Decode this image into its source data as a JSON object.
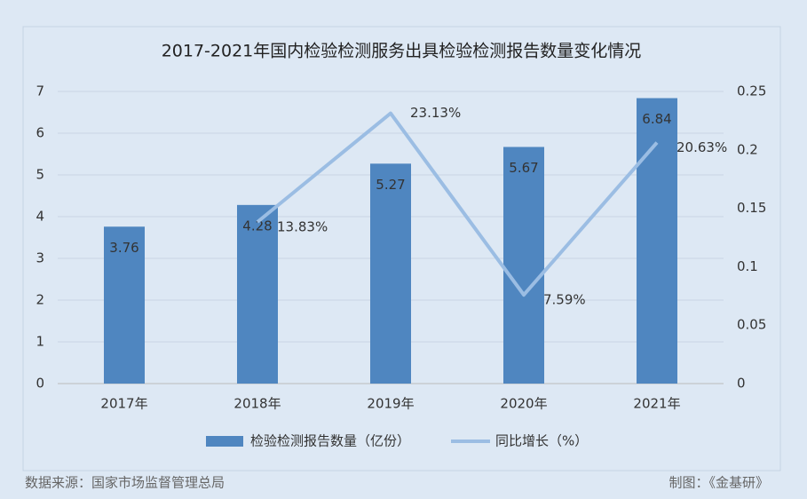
{
  "chart_data": {
    "type": "bar",
    "title": "2017-2021年国内检验检测服务出具检验检测报告数量变化情况",
    "categories": [
      "2017年",
      "2018年",
      "2019年",
      "2020年",
      "2021年"
    ],
    "series": [
      {
        "name": "检验检测报告数量（亿份）",
        "type": "bar",
        "color": "#4f86c0",
        "values": [
          3.76,
          4.28,
          5.27,
          5.67,
          6.84
        ]
      },
      {
        "name": "同比增长（%）",
        "type": "line",
        "axis": "y2",
        "color": "#9bbde3",
        "values": [
          null,
          0.1383,
          0.2313,
          0.0759,
          0.2063
        ],
        "value_labels": [
          null,
          "13.83%",
          "23.13%",
          "7.59%",
          "20.63%"
        ]
      }
    ],
    "ylim": [
      0,
      7
    ],
    "yticks": [
      0,
      1,
      2,
      3,
      4,
      5,
      6,
      7
    ],
    "y2lim": [
      0,
      0.25
    ],
    "y2ticks": [
      0,
      0.05,
      0.1,
      0.15,
      0.2,
      0.25
    ],
    "legend": "bottom",
    "source": "数据来源：国家市场监督管理总局",
    "credit": "制图：《金基研》"
  }
}
